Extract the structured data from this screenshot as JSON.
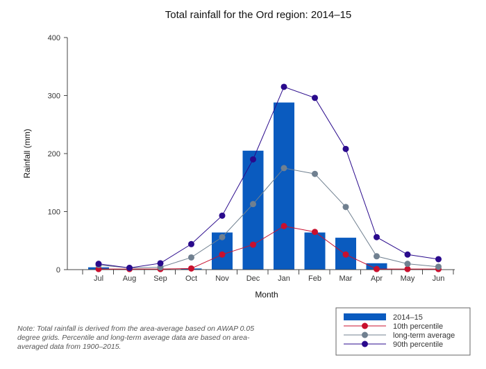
{
  "chart_data": {
    "type": "bar",
    "title": "Total rainfall for the Ord region: 2014–15",
    "xlabel": "Month",
    "ylabel": "Rainfall (mm)",
    "ylim": [
      0,
      400
    ],
    "yticks": [
      0,
      100,
      200,
      300,
      400
    ],
    "categories": [
      "Jul",
      "Aug",
      "Sep",
      "Oct",
      "Nov",
      "Dec",
      "Jan",
      "Feb",
      "Mar",
      "Apr",
      "May",
      "Jun"
    ],
    "series": [
      {
        "name": "2014–15",
        "kind": "bar",
        "color": "#0a5bbf",
        "values": [
          4,
          1,
          1,
          2,
          64,
          205,
          288,
          64,
          55,
          11,
          0,
          0
        ]
      },
      {
        "name": "10th percentile",
        "kind": "line",
        "color": "#c8102e",
        "values": [
          1,
          1,
          1,
          2,
          26,
          43,
          75,
          65,
          26,
          1,
          1,
          1
        ]
      },
      {
        "name": "long-term average",
        "kind": "line",
        "color": "#708090",
        "values": [
          8,
          3,
          4,
          21,
          56,
          113,
          175,
          165,
          108,
          23,
          10,
          5
        ]
      },
      {
        "name": "90th percentile",
        "kind": "line",
        "color": "#2a0a8c",
        "values": [
          10,
          3,
          11,
          44,
          93,
          190,
          315,
          296,
          208,
          56,
          26,
          18
        ]
      }
    ],
    "legend_position": "bottom-right"
  },
  "note": "Note: Total rainfall is derived from the area-average based on AWAP 0.05 degree grids. Percentile and long-term average data are based on area-averaged data from 1900–2015."
}
